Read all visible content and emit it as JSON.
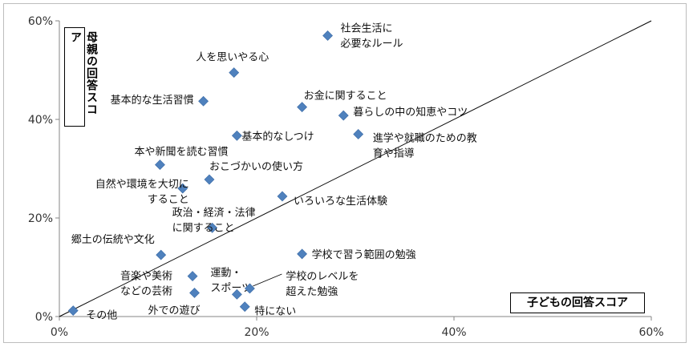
{
  "chart_data": {
    "type": "scatter",
    "xlabel": "子どもの回答スコア",
    "ylabel": "母親の回答スコア",
    "xlim": [
      0,
      60
    ],
    "ylim": [
      0,
      60
    ],
    "x_ticks": [
      "0%",
      "20%",
      "40%",
      "60%"
    ],
    "y_ticks": [
      "0%",
      "20%",
      "40%",
      "60%"
    ],
    "marker_color": "#4f81bd",
    "diagonal_line": true,
    "points": [
      {
        "label": [
          "社会生活に",
          "必要なルール"
        ],
        "x": 27.2,
        "y": 57.0
      },
      {
        "label": [
          "人を思いやる心"
        ],
        "x": 17.7,
        "y": 49.5
      },
      {
        "label": [
          "基本的な生活習慣"
        ],
        "x": 14.6,
        "y": 43.7
      },
      {
        "label": [
          "お金に関すること"
        ],
        "x": 24.6,
        "y": 42.5
      },
      {
        "label": [
          "暮らしの中の知恵やコツ"
        ],
        "x": 28.8,
        "y": 40.8
      },
      {
        "label": [
          "基本的なしつけ"
        ],
        "x": 18.0,
        "y": 36.7
      },
      {
        "label": [
          "進学や就職のための教",
          "育や指導"
        ],
        "x": 30.3,
        "y": 37.0
      },
      {
        "label": [
          "本や新聞を読む習慣"
        ],
        "x": 10.2,
        "y": 30.8
      },
      {
        "label": [
          "おこづかいの使い方"
        ],
        "x": 15.2,
        "y": 27.8
      },
      {
        "label": [
          "自然や環境を大切に",
          "すること"
        ],
        "x": 12.5,
        "y": 26.0
      },
      {
        "label": [
          "いろいろな生活体験"
        ],
        "x": 22.6,
        "y": 24.4
      },
      {
        "label": [
          "政治・経済・法律",
          "に関すること"
        ],
        "x": 15.5,
        "y": 18.0
      },
      {
        "label": [
          "郷土の伝統や文化"
        ],
        "x": 10.3,
        "y": 12.5
      },
      {
        "label": [
          "学校で習う範囲の勉強"
        ],
        "x": 24.6,
        "y": 12.7
      },
      {
        "label": [
          "音楽や美術",
          "などの芸術"
        ],
        "x": 13.5,
        "y": 8.2
      },
      {
        "label": [
          "運動・",
          "スポーツ"
        ],
        "x": 18.0,
        "y": 4.5
      },
      {
        "label": [
          "学校のレベルを",
          "超えた勉強"
        ],
        "x": 19.3,
        "y": 5.7
      },
      {
        "label": [
          "外での遊び"
        ],
        "x": 13.7,
        "y": 4.8
      },
      {
        "label": [
          "特にない"
        ],
        "x": 18.8,
        "y": 2.0
      },
      {
        "label": [
          "その他"
        ],
        "x": 1.4,
        "y": 1.2
      }
    ]
  }
}
